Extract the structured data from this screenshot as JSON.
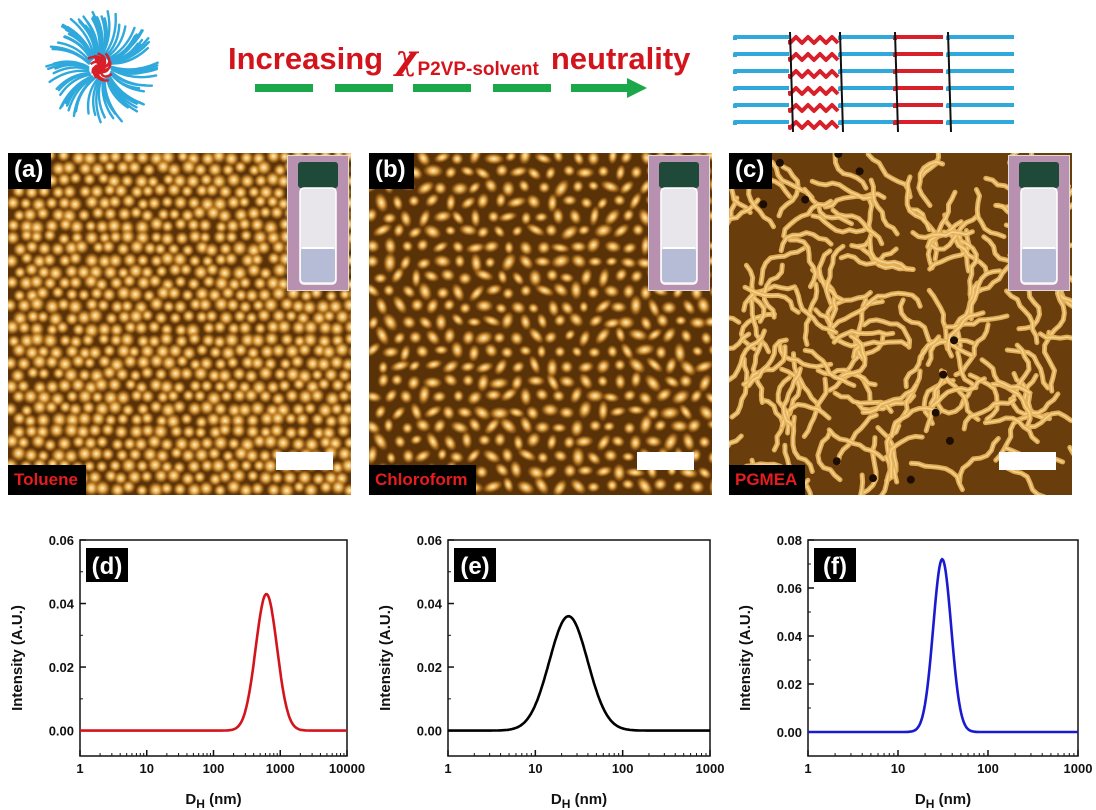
{
  "banner": {
    "left": "Increasing",
    "chi": "χ",
    "subscript": "P2VP-solvent",
    "right": "neutrality",
    "colors": {
      "text": "#d4141c",
      "arrow": "#1aa84a",
      "ps_chain": "#2fa8dc",
      "p2vp_chain": "#d8202a"
    }
  },
  "panels": [
    {
      "label": "(a)",
      "solvent": "Toluene",
      "morphology": "spheres"
    },
    {
      "label": "(b)",
      "solvent": "Chloroform",
      "morphology": "mixed"
    },
    {
      "label": "(c)",
      "solvent": "PGMEA",
      "morphology": "lamellae"
    }
  ],
  "chart_data": [
    {
      "type": "line",
      "label": "(d)",
      "xlabel": "D",
      "xlabel_sub": "H",
      "xlabel_unit": " (nm)",
      "ylabel": "Intensity (A.U.)",
      "xscale": "log",
      "xlim": [
        1,
        10000
      ],
      "xticks": [
        "1",
        "10",
        "100",
        "1000",
        "10000"
      ],
      "ylim": [
        -0.008,
        0.06
      ],
      "yticks": [
        "0.00",
        "0.02",
        "0.04",
        "0.06"
      ],
      "series": [
        {
          "color": "#d4141c",
          "peak_x": 620,
          "peak_y": 0.043,
          "log_sigma": 0.16
        }
      ],
      "legend": "none",
      "grid": false
    },
    {
      "type": "line",
      "label": "(e)",
      "xlabel": "D",
      "xlabel_sub": "H",
      "xlabel_unit": " (nm)",
      "ylabel": "Intensity (A.U.)",
      "xscale": "log",
      "xlim": [
        1,
        1000
      ],
      "xticks": [
        "1",
        "10",
        "100",
        "1000"
      ],
      "ylim": [
        -0.008,
        0.06
      ],
      "yticks": [
        "0.00",
        "0.02",
        "0.04",
        "0.06"
      ],
      "series": [
        {
          "color": "#000000",
          "peak_x": 24,
          "peak_y": 0.036,
          "log_sigma": 0.22
        }
      ],
      "legend": "none",
      "grid": false
    },
    {
      "type": "line",
      "label": "(f)",
      "xlabel": "D",
      "xlabel_sub": "H",
      "xlabel_unit": " (nm)",
      "ylabel": "Intensity (A.U.)",
      "xscale": "log",
      "xlim": [
        1,
        1000
      ],
      "xticks": [
        "1",
        "10",
        "100",
        "1000"
      ],
      "ylim": [
        -0.01,
        0.08
      ],
      "yticks": [
        "0.00",
        "0.02",
        "0.04",
        "0.06",
        "0.08"
      ],
      "series": [
        {
          "color": "#1a1ad0",
          "peak_x": 31,
          "peak_y": 0.072,
          "log_sigma": 0.1
        }
      ],
      "legend": "none",
      "grid": false
    }
  ]
}
